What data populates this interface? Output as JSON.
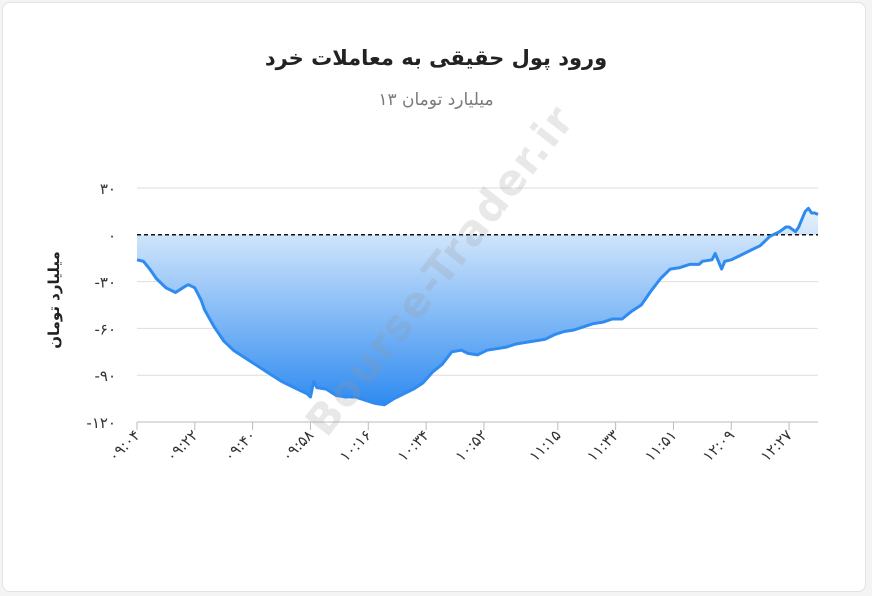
{
  "colors": {
    "line": "#2f8bf0",
    "fill_top": "#e8f2fd",
    "fill_bottom": "#2f8bf0",
    "zero_line": "#111111",
    "grid": "#dddddd"
  },
  "watermark": "Bourse-Trader.ir",
  "chart_data": {
    "type": "area",
    "title": "ورود پول حقیقی به معاملات خرد",
    "subtitle": "میلیارد تومان ۱۳",
    "ylabel": "میلیارد تومان",
    "xlabel": "",
    "ylim": [
      -120,
      30
    ],
    "yticks": [
      30,
      0,
      -30,
      -60,
      -90,
      -120
    ],
    "ytick_labels": [
      "۳۰",
      "۰",
      "-۳۰",
      "-۶۰",
      "-۹۰",
      "-۱۲۰"
    ],
    "xticks": [
      "09:04",
      "09:22",
      "09:40",
      "09:58",
      "10:16",
      "10:34",
      "10:52",
      "11:15",
      "11:33",
      "11:51",
      "12:09",
      "12:27"
    ],
    "xtick_labels": [
      "۰۹:۰۴",
      "۰۹:۲۲",
      "۰۹:۴۰",
      "۰۹:۵۸",
      "۱۰:۱۶",
      "۱۰:۳۴",
      "۱۰:۵۲",
      "۱۱:۱۵",
      "۱۱:۳۳",
      "۱۱:۵۱",
      "۱۲:۰۹",
      "۱۲:۲۷"
    ],
    "grid": true,
    "zero_line": "dashed",
    "series": [
      {
        "x": [
          "09:04",
          "09:06",
          "09:08",
          "09:10",
          "09:13",
          "09:16",
          "09:19",
          "09:20",
          "09:22",
          "09:24",
          "09:25",
          "09:28",
          "09:31",
          "09:34",
          "09:37",
          "09:40",
          "09:43",
          "09:46",
          "09:49",
          "09:52",
          "09:55",
          "09:57",
          "09:58",
          "09:59",
          "10:00",
          "10:03",
          "10:06",
          "10:09",
          "10:12",
          "10:15",
          "10:18",
          "10:21",
          "10:24",
          "10:27",
          "10:30",
          "10:33",
          "10:36",
          "10:39",
          "10:42",
          "10:45",
          "10:47",
          "10:50",
          "10:53",
          "10:56",
          "10:59",
          "11:02",
          "11:05",
          "11:08",
          "11:11",
          "11:14",
          "11:17",
          "11:20",
          "11:23",
          "11:26",
          "11:29",
          "11:32",
          "11:35",
          "11:38",
          "11:41",
          "11:44",
          "11:47",
          "11:50",
          "11:53",
          "11:56",
          "11:59",
          "12:00",
          "12:03",
          "12:04",
          "12:06",
          "12:07",
          "12:09",
          "12:12",
          "12:15",
          "12:18",
          "12:21",
          "12:24",
          "12:26",
          "12:27",
          "12:29",
          "12:30",
          "12:31",
          "12:32",
          "12:33",
          "12:34",
          "12:35",
          "12:36"
        ],
        "values": [
          -16,
          -17,
          -22,
          -28,
          -34,
          -37,
          -33,
          -32,
          -34,
          -42,
          -48,
          -59,
          -68,
          -74,
          -78,
          -82,
          -86,
          -90,
          -94,
          -97,
          -100,
          -102,
          -104,
          -94,
          -98,
          -99,
          -103,
          -104,
          -104,
          -106,
          -108,
          -109,
          -105,
          -102,
          -99,
          -95,
          -88,
          -83,
          -75,
          -74,
          -76,
          -77,
          -74,
          -73,
          -72,
          -70,
          -69,
          -68,
          -67,
          -64,
          -62,
          -61,
          -59,
          -57,
          -56,
          -54,
          -54,
          -49,
          -45,
          -36,
          -28,
          -22,
          -21,
          -19,
          -19,
          -17,
          -16,
          -12,
          -22,
          -17,
          -16,
          -13,
          -10,
          -7,
          -1,
          2,
          5,
          5,
          2,
          5,
          10,
          15,
          17,
          14,
          14,
          13
        ]
      }
    ]
  }
}
